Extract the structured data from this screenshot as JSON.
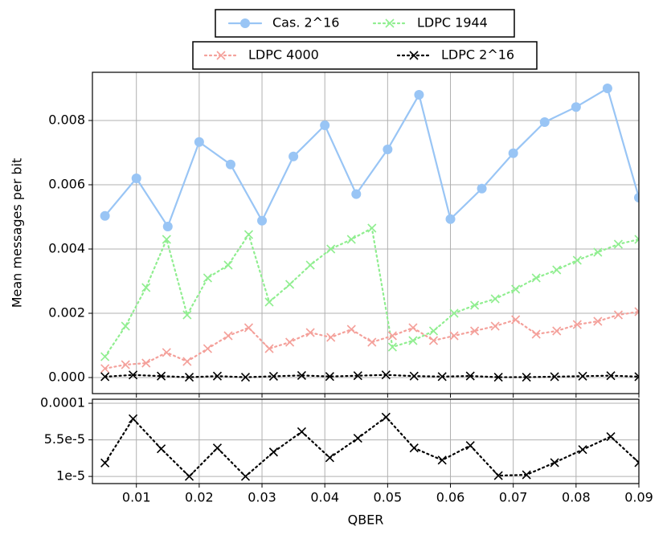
{
  "chart_data": [
    {
      "type": "line",
      "ylabel": "Mean messages per bit",
      "grid": true,
      "legend": "upper center",
      "xlim": [
        0.003,
        0.09
      ],
      "xticks": [
        0.01,
        0.02,
        0.03,
        0.04,
        0.05,
        0.06,
        0.07,
        0.08,
        0.09
      ],
      "ylim": [
        -0.0005,
        0.0095
      ],
      "yticks": [
        {
          "value": 0,
          "label": "0.000"
        },
        0.002,
        0.004,
        0.006,
        0.008
      ],
      "series": [
        {
          "name": "Cas. 2^16",
          "color": "#99c5f5",
          "marker": "o",
          "linestyle": "solid",
          "x": [
            0.005,
            0.01,
            0.015,
            0.02,
            0.025,
            0.03,
            0.035,
            0.04,
            0.045,
            0.05,
            0.055,
            0.06,
            0.065,
            0.07,
            0.075,
            0.08,
            0.085,
            0.09
          ],
          "values": [
            0.00503,
            0.0062,
            0.0047,
            0.00733,
            0.00663,
            0.00488,
            0.00688,
            0.00785,
            0.00571,
            0.0071,
            0.0088,
            0.00493,
            0.00588,
            0.00698,
            0.00795,
            0.00842,
            0.009,
            0.0056
          ]
        },
        {
          "name": "LDPC 1944",
          "color": "#90ee90",
          "marker": "x",
          "linestyle": "dotted",
          "x": [
            0.005,
            0.00827,
            0.01154,
            0.01481,
            0.01808,
            0.02135,
            0.02462,
            0.02788,
            0.03115,
            0.03442,
            0.03769,
            0.04096,
            0.04423,
            0.0475,
            0.05077,
            0.05404,
            0.05731,
            0.06058,
            0.06385,
            0.06712,
            0.07038,
            0.07365,
            0.07692,
            0.08019,
            0.08346,
            0.08673,
            0.09
          ],
          "values": [
            0.00065,
            0.0016,
            0.0028,
            0.0043,
            0.00195,
            0.0031,
            0.0035,
            0.00445,
            0.00235,
            0.0029,
            0.0035,
            0.004,
            0.0043,
            0.00465,
            0.00095,
            0.00115,
            0.00145,
            0.002,
            0.00225,
            0.00245,
            0.00275,
            0.0031,
            0.00335,
            0.00365,
            0.0039,
            0.00415,
            0.0043
          ]
        },
        {
          "name": "LDPC 4000",
          "color": "#f4a09a",
          "marker": "x",
          "linestyle": "dotted",
          "x": [
            0.005,
            0.00827,
            0.01154,
            0.01481,
            0.01808,
            0.02135,
            0.02462,
            0.02788,
            0.03115,
            0.03442,
            0.03769,
            0.04096,
            0.04423,
            0.0475,
            0.05077,
            0.05404,
            0.05731,
            0.06058,
            0.06385,
            0.06712,
            0.07038,
            0.07365,
            0.07692,
            0.08019,
            0.08346,
            0.08673,
            0.09
          ],
          "values": [
            0.00028,
            0.0004,
            0.00045,
            0.00078,
            0.0005,
            0.0009,
            0.0013,
            0.00155,
            0.0009,
            0.0011,
            0.0014,
            0.00125,
            0.0015,
            0.0011,
            0.0013,
            0.00155,
            0.00115,
            0.0013,
            0.00145,
            0.0016,
            0.0018,
            0.00135,
            0.00145,
            0.00165,
            0.00175,
            0.00195,
            0.00205
          ]
        },
        {
          "name": "LDPC 2^16",
          "color": "#000000",
          "marker": "x",
          "linestyle": "dotted",
          "x": [
            0.005,
            0.00947,
            0.01395,
            0.01842,
            0.02289,
            0.02737,
            0.03184,
            0.03632,
            0.04079,
            0.04526,
            0.04974,
            0.05421,
            0.05868,
            0.06316,
            0.06763,
            0.07211,
            0.07658,
            0.08105,
            0.08553,
            0.09
          ],
          "values": [
            2.66e-05,
            8.1e-05,
            4.4e-05,
            1e-05,
            4.5e-05,
            1e-05,
            4e-05,
            6.5e-05,
            3.3e-05,
            5.7e-05,
            8.3e-05,
            4.5e-05,
            3e-05,
            4.8e-05,
            1.1e-05,
            1.2e-05,
            2.7e-05,
            4.3e-05,
            5.9e-05,
            2.7e-05
          ]
        }
      ]
    },
    {
      "type": "line",
      "xlabel": "QBER",
      "grid": true,
      "xlim": [
        0.003,
        0.09
      ],
      "xticks": [
        0.01,
        0.02,
        0.03,
        0.04,
        0.05,
        0.06,
        0.07,
        0.08,
        0.09
      ],
      "ylim": [
        1.2e-06,
        0.000105
      ],
      "yticks": [
        {
          "value": 1e-05,
          "label": "1e-5"
        },
        {
          "value": 5.5e-05,
          "label": "5.5e-5"
        },
        {
          "value": 0.0001,
          "label": "0.0001"
        }
      ],
      "series": [
        {
          "color": "#000000",
          "marker": "x",
          "linestyle": "dotted",
          "x": [
            0.005,
            0.00947,
            0.01395,
            0.01842,
            0.02289,
            0.02737,
            0.03184,
            0.03632,
            0.04079,
            0.04526,
            0.04974,
            0.05421,
            0.05868,
            0.06316,
            0.06763,
            0.07211,
            0.07658,
            0.08105,
            0.08553,
            0.09
          ],
          "values": [
            2.66e-05,
            8.1e-05,
            4.4e-05,
            1e-05,
            4.5e-05,
            1e-05,
            4e-05,
            6.5e-05,
            3.3e-05,
            5.7e-05,
            8.3e-05,
            4.5e-05,
            3e-05,
            4.8e-05,
            1.1e-05,
            1.2e-05,
            2.7e-05,
            4.3e-05,
            5.9e-05,
            2.7e-05
          ]
        }
      ]
    }
  ]
}
